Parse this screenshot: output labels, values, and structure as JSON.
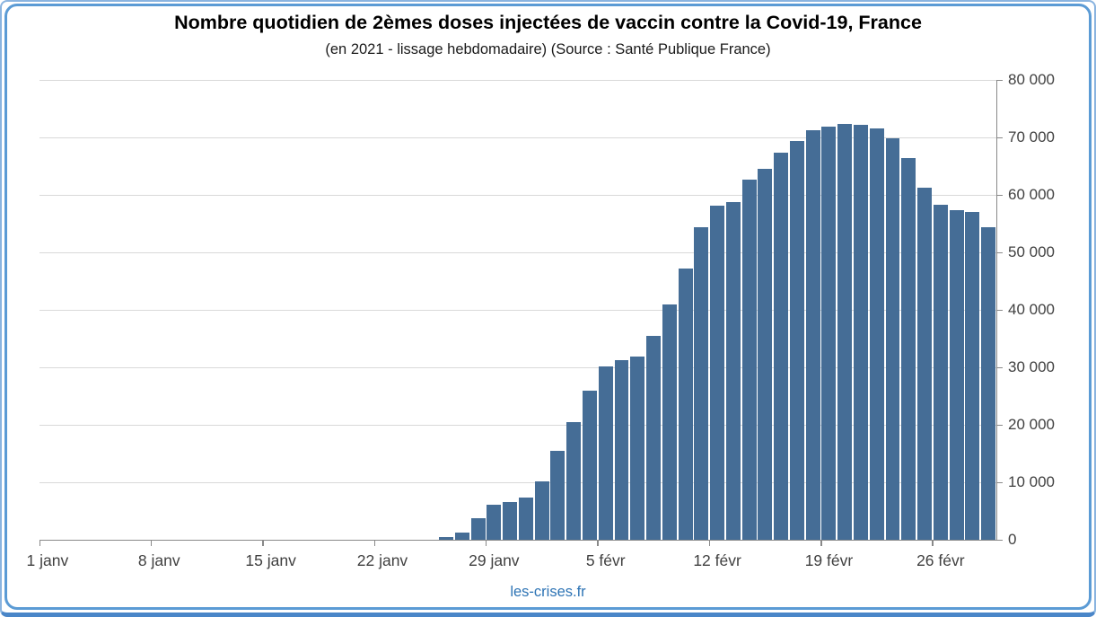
{
  "header": {
    "title": "Nombre quotidien de 2èmes doses injectées de vaccin contre la Covid-19, France",
    "subtitle": "(en 2021 - lissage hebdomadaire) (Source : Santé Publique France)"
  },
  "footer": {
    "link_label": "les-crises.fr"
  },
  "colors": {
    "bar": "#456d96",
    "grid": "#d9d9d9",
    "axis": "#898989",
    "tick_text": "#404040",
    "title": "#000000",
    "link": "#2e74b5",
    "frame_outer": "#8ab4e0",
    "frame_inner": "#5b9bd5",
    "frame_bottom": "#4a86c8"
  },
  "chart_data": {
    "type": "bar",
    "title": "Nombre quotidien de 2èmes doses injectées de vaccin contre la Covid-19, France",
    "subtitle": "(en 2021 - lissage hebdomadaire) (Source : Santé Publique France)",
    "xlabel": "",
    "ylabel": "",
    "ylim": [
      0,
      80000
    ],
    "grid": "horizontal",
    "y_axis_side": "right",
    "legend": false,
    "y_ticks": [
      {
        "value": 0,
        "label": "0"
      },
      {
        "value": 10000,
        "label": "10 000"
      },
      {
        "value": 20000,
        "label": "20 000"
      },
      {
        "value": 30000,
        "label": "30 000"
      },
      {
        "value": 40000,
        "label": "40 000"
      },
      {
        "value": 50000,
        "label": "50 000"
      },
      {
        "value": 60000,
        "label": "60 000"
      },
      {
        "value": 70000,
        "label": "70 000"
      },
      {
        "value": 80000,
        "label": "80 000"
      }
    ],
    "x_ticks": [
      {
        "day_index": 0,
        "label": "1 janv"
      },
      {
        "day_index": 7,
        "label": "8 janv"
      },
      {
        "day_index": 14,
        "label": "15 janv"
      },
      {
        "day_index": 21,
        "label": "22 janv"
      },
      {
        "day_index": 28,
        "label": "29 janv"
      },
      {
        "day_index": 35,
        "label": "5 févr"
      },
      {
        "day_index": 42,
        "label": "12 févr"
      },
      {
        "day_index": 49,
        "label": "19 févr"
      },
      {
        "day_index": 56,
        "label": "26 févr"
      }
    ],
    "categories": [
      "1 janv",
      "2 janv",
      "3 janv",
      "4 janv",
      "5 janv",
      "6 janv",
      "7 janv",
      "8 janv",
      "9 janv",
      "10 janv",
      "11 janv",
      "12 janv",
      "13 janv",
      "14 janv",
      "15 janv",
      "16 janv",
      "17 janv",
      "18 janv",
      "19 janv",
      "20 janv",
      "21 janv",
      "22 janv",
      "23 janv",
      "24 janv",
      "25 janv",
      "26 janv",
      "27 janv",
      "28 janv",
      "29 janv",
      "30 janv",
      "31 janv",
      "1 févr",
      "2 févr",
      "3 févr",
      "4 févr",
      "5 févr",
      "6 févr",
      "7 févr",
      "8 févr",
      "9 févr",
      "10 févr",
      "11 févr",
      "12 févr",
      "13 févr",
      "14 févr",
      "15 févr",
      "16 févr",
      "17 févr",
      "18 févr",
      "19 févr",
      "20 févr",
      "21 févr",
      "22 févr",
      "23 févr",
      "24 févr",
      "25 févr",
      "26 févr",
      "27 févr",
      "28 févr",
      "1 mars"
    ],
    "values": [
      0,
      0,
      0,
      0,
      0,
      0,
      0,
      0,
      0,
      0,
      0,
      0,
      0,
      0,
      0,
      0,
      0,
      0,
      0,
      0,
      0,
      0,
      0,
      0,
      0,
      500,
      1300,
      3700,
      6100,
      6600,
      7300,
      10200,
      15500,
      20400,
      25900,
      30100,
      31200,
      31800,
      35400,
      41000,
      47200,
      54400,
      58200,
      58800,
      62600,
      64500,
      67300,
      69400,
      71200,
      71800,
      72400,
      72200,
      71500,
      69800,
      66400,
      61200,
      58300,
      57300,
      57000,
      54400
    ]
  }
}
